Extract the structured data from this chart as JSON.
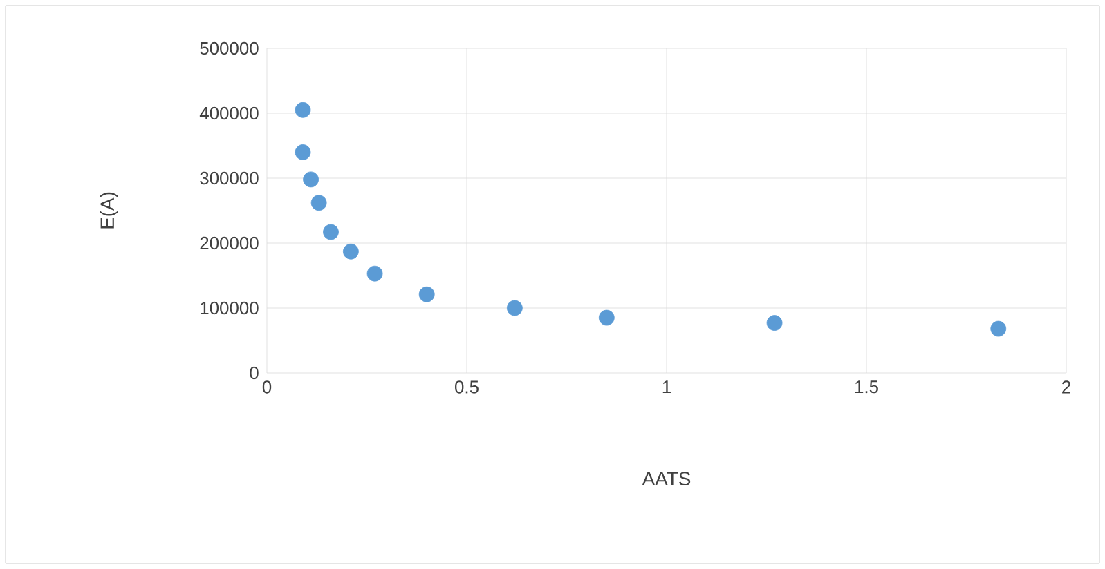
{
  "chart_data": {
    "type": "scatter",
    "xlabel": "AATS",
    "ylabel": "E(A)",
    "x": [
      0.09,
      0.09,
      0.11,
      0.13,
      0.16,
      0.21,
      0.27,
      0.4,
      0.62,
      0.85,
      1.27,
      1.83
    ],
    "values": [
      405000,
      340000,
      298000,
      262000,
      217000,
      187000,
      153000,
      121000,
      100000,
      85000,
      77000,
      68000
    ],
    "color": "#5b9bd5",
    "xlim": [
      0,
      2
    ],
    "xticks": [
      0,
      0.5,
      1,
      1.5,
      2
    ],
    "ylim": [
      0,
      500000
    ],
    "yticks": [
      0,
      100000,
      200000,
      300000,
      400000,
      500000
    ],
    "grid": true
  }
}
